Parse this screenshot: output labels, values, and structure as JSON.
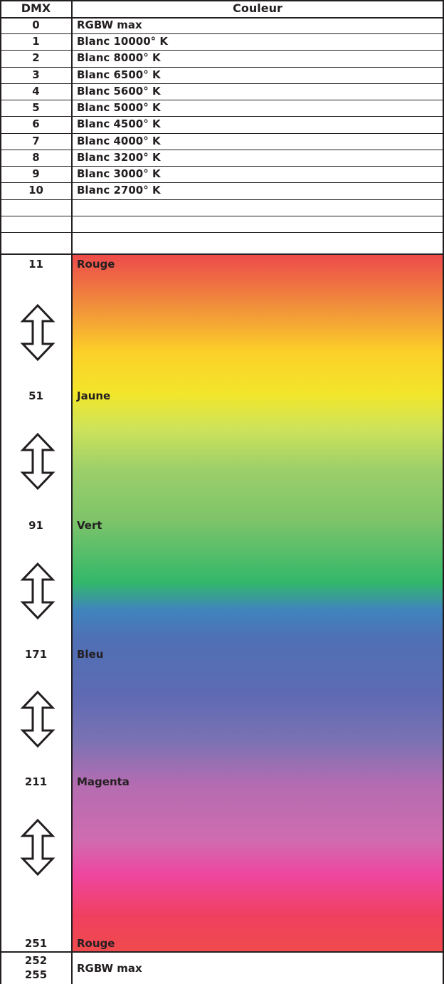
{
  "table": {
    "header": {
      "dmx": "DMX",
      "couleur": "Couleur"
    },
    "rows": [
      {
        "dmx": "0",
        "label": "RGBW max"
      },
      {
        "dmx": "1",
        "label": "Blanc 10000° K"
      },
      {
        "dmx": "2",
        "label": "Blanc 8000° K"
      },
      {
        "dmx": "3",
        "label": "Blanc 6500° K"
      },
      {
        "dmx": "4",
        "label": "Blanc 5600° K"
      },
      {
        "dmx": "5",
        "label": "Blanc 5000° K"
      },
      {
        "dmx": "6",
        "label": "Blanc 4500° K"
      },
      {
        "dmx": "7",
        "label": "Blanc 4000° K"
      },
      {
        "dmx": "8",
        "label": "Blanc 3200° K"
      },
      {
        "dmx": "9",
        "label": "Blanc 3000° K"
      },
      {
        "dmx": "10",
        "label": "Blanc 2700° K"
      }
    ],
    "color_range": {
      "stops": [
        {
          "dmx": "11",
          "label": "Rouge"
        },
        {
          "dmx": "51",
          "label": "Jaune"
        },
        {
          "dmx": "91",
          "label": "Vert"
        },
        {
          "dmx": "171",
          "label": "Bleu"
        },
        {
          "dmx": "211",
          "label": "Magenta"
        },
        {
          "dmx": "251",
          "label": "Rouge"
        }
      ],
      "gradient_colors": [
        "#ee4a4b",
        "#f08c3c",
        "#fcd029",
        "#f2e62a",
        "#9bcf6a",
        "#33b86a",
        "#3f84bd",
        "#5d6ab3",
        "#b46cb1",
        "#ef46a0",
        "#ef4a4d"
      ],
      "arrow_icon": "double-headed-vertical-arrow-icon"
    },
    "last_row": {
      "dmx_start": "252",
      "dmx_end": "255",
      "label": "RGBW max"
    }
  }
}
